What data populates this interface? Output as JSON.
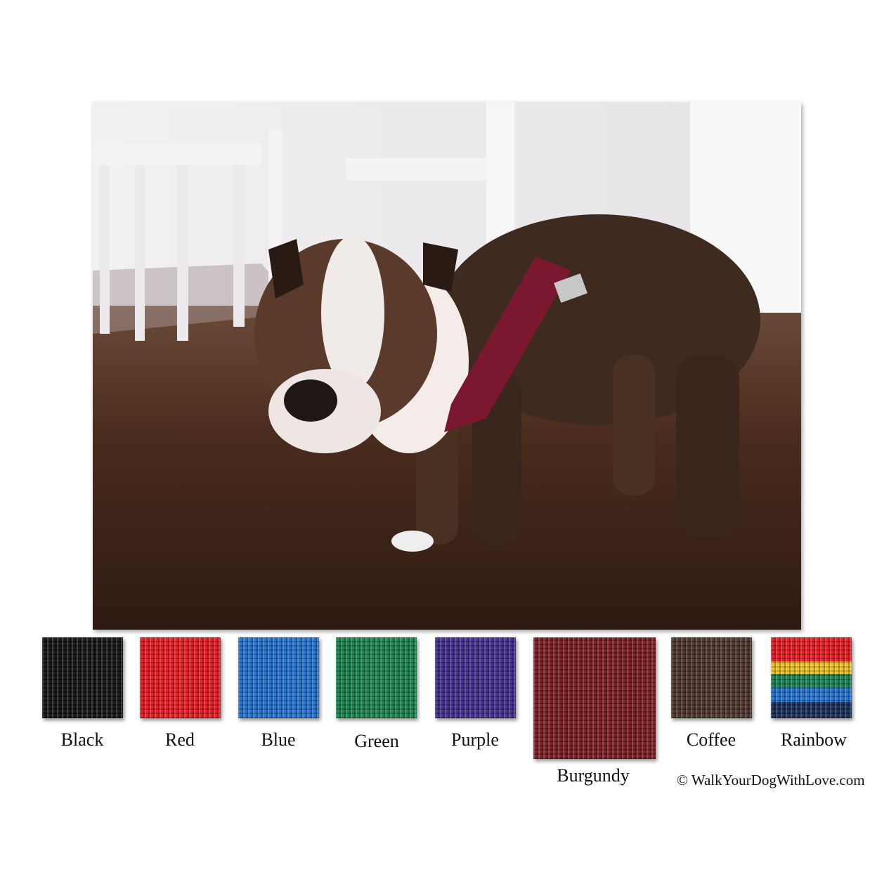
{
  "photo": {
    "subject": "bulldog wearing burgundy harness"
  },
  "swatches": [
    {
      "label": "Black",
      "color": "#101010"
    },
    {
      "label": "Red",
      "color": "#e8161e"
    },
    {
      "label": "Blue",
      "color": "#1e6fce"
    },
    {
      "label": "Green",
      "color": "#15814a"
    },
    {
      "label": "Purple",
      "color": "#3f2a8c"
    },
    {
      "label": "Burgundy",
      "color": "#7a1a1c"
    },
    {
      "label": "Coffee",
      "color": "#4a3128"
    },
    {
      "label": "Rainbow",
      "color": "#e8161e"
    }
  ],
  "copyright": "© WalkYourDogWithLove.com"
}
